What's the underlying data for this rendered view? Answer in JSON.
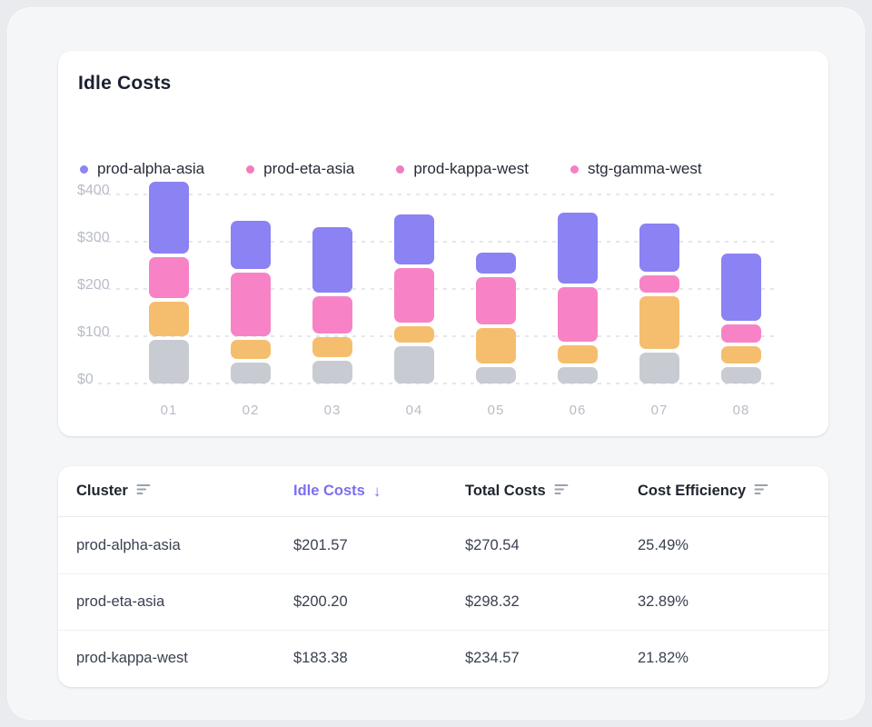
{
  "page": {
    "bg": "#e9ebef",
    "panel_bg": "#f5f6f8",
    "accent": "#7a6ff0"
  },
  "chart_card": {
    "title": "Idle Costs",
    "legend": [
      {
        "label": "prod-alpha-asia",
        "dot_color": "#8d85f2"
      },
      {
        "label": "prod-eta-asia",
        "dot_color": "#f27cbd"
      },
      {
        "label": "prod-kappa-west",
        "dot_color": "#ef7cc0"
      },
      {
        "label": "stg-gamma-west",
        "dot_color": "#f480c6"
      }
    ]
  },
  "chart_data": {
    "type": "bar",
    "stacked": true,
    "title": "Idle Costs",
    "categories": [
      "01",
      "02",
      "03",
      "04",
      "05",
      "06",
      "07",
      "08"
    ],
    "series": [
      {
        "name": "stg-gamma-west",
        "color": "#c9cbd3",
        "values": [
          92,
          45,
          48,
          78,
          35,
          35,
          66,
          35
        ]
      },
      {
        "name": "prod-kappa-west",
        "color": "#f5be6e",
        "values": [
          73,
          39,
          42,
          36,
          74,
          39,
          111,
          37
        ]
      },
      {
        "name": "prod-eta-asia",
        "color": "#f783c6",
        "values": [
          87,
          135,
          79,
          114,
          100,
          114,
          36,
          37
        ]
      },
      {
        "name": "prod-alpha-asia",
        "color": "#8b82f3",
        "values": [
          151,
          103,
          138,
          106,
          45,
          151,
          103,
          143
        ]
      }
    ],
    "stack_order_note": "series listed bottom-to-top",
    "y_ticks": [
      "$400",
      "$300",
      "$200",
      "$100",
      "$0"
    ],
    "y_tick_values": [
      400,
      300,
      200,
      100,
      0
    ],
    "ylim": [
      0,
      430
    ],
    "xlabel": "",
    "ylabel": "",
    "grid": "horizontal-dashed",
    "legend_position": "top",
    "axis_text_color": "#b8bcc6",
    "gridline_color": "#e5e7ec"
  },
  "table": {
    "columns": [
      {
        "label": "Cluster",
        "sortable": true,
        "active": false
      },
      {
        "label": "Idle Costs",
        "sortable": true,
        "active": true,
        "sort_dir": "desc",
        "arrow": "↓"
      },
      {
        "label": "Total Costs",
        "sortable": true,
        "active": false
      },
      {
        "label": "Cost Efficiency",
        "sortable": true,
        "active": false
      }
    ],
    "rows": [
      {
        "cluster": "prod-alpha-asia",
        "idle_costs": "$201.57",
        "total_costs": "$270.54",
        "cost_efficiency": "25.49%"
      },
      {
        "cluster": "prod-eta-asia",
        "idle_costs": "$200.20",
        "total_costs": "$298.32",
        "cost_efficiency": "32.89%"
      },
      {
        "cluster": "prod-kappa-west",
        "idle_costs": "$183.38",
        "total_costs": "$234.57",
        "cost_efficiency": "21.82%"
      }
    ]
  }
}
